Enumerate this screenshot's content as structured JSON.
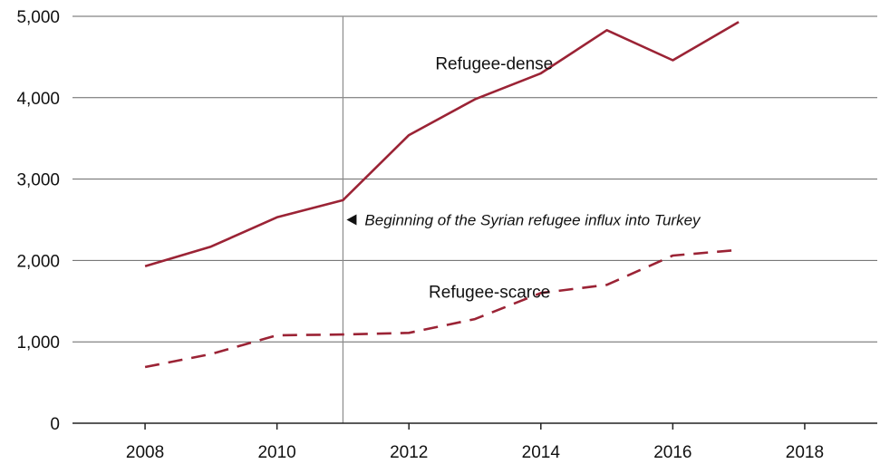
{
  "chart_data": {
    "type": "line",
    "title": "",
    "xlabel": "",
    "ylabel": "",
    "xlim": [
      2006.9,
      2019.1
    ],
    "ylim": [
      0,
      5000
    ],
    "x_ticks": [
      2008,
      2010,
      2012,
      2014,
      2016,
      2018
    ],
    "y_ticks": [
      0,
      1000,
      2000,
      3000,
      4000,
      5000
    ],
    "x_tick_labels": [
      "2008",
      "2010",
      "2012",
      "2014",
      "2016",
      "2018"
    ],
    "y_tick_labels": [
      "0",
      "1,000",
      "2,000",
      "3,000",
      "4,000",
      "5,000"
    ],
    "grid": "horizontal",
    "legend": "none",
    "series": [
      {
        "name": "Refugee-dense",
        "line_style": "solid",
        "color": "#9b2335",
        "x": [
          2008,
          2009,
          2010,
          2011,
          2012,
          2013,
          2014,
          2015,
          2016,
          2017
        ],
        "values": [
          1930,
          2170,
          2530,
          2740,
          3540,
          3980,
          4300,
          4830,
          4460,
          4930
        ]
      },
      {
        "name": "Refugee-scarce",
        "line_style": "dashed",
        "color": "#9b2335",
        "x": [
          2008,
          2009,
          2010,
          2011,
          2012,
          2013,
          2014,
          2015,
          2016,
          2017
        ],
        "values": [
          690,
          850,
          1080,
          1090,
          1110,
          1280,
          1600,
          1700,
          2060,
          2130
        ]
      }
    ],
    "annotations": [
      {
        "text": "Beginning of the Syrian refugee influx into Turkey",
        "x": 2011,
        "marker": "vertical-line-with-left-pointing-arrow"
      }
    ]
  }
}
